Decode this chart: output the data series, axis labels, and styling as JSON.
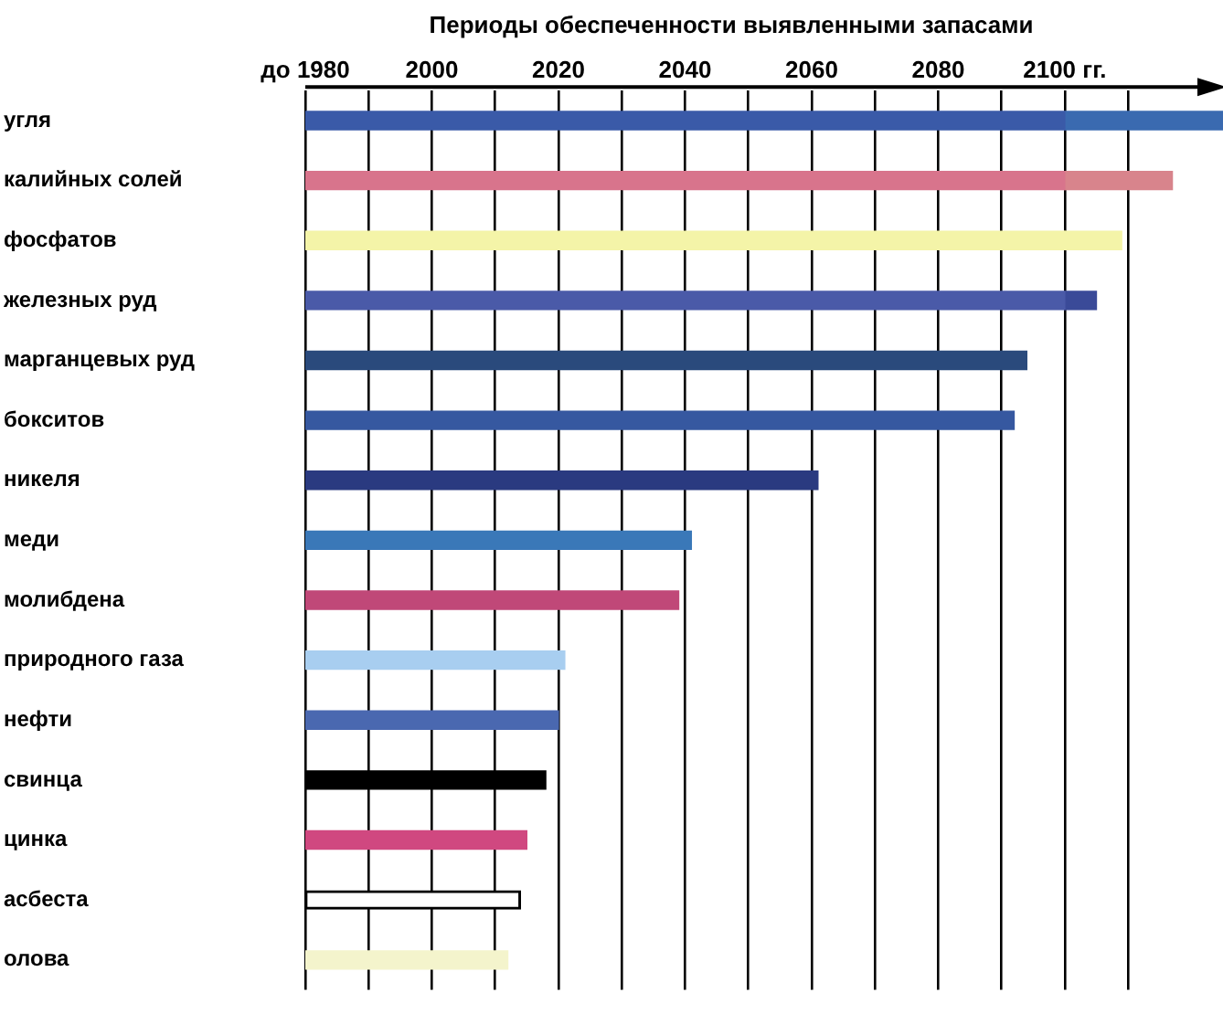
{
  "chart_data": {
    "type": "bar",
    "orientation": "horizontal",
    "title": "Периоды обеспеченности выявленными запасами",
    "categories": [
      "угля",
      "калийных солей",
      "фосфатов",
      "железных руд",
      "марганцевых руд",
      "бокситов",
      "никеля",
      "меди",
      "молибдена",
      "природного газа",
      "нефти",
      "свинца",
      "цинка",
      "асбеста",
      "олова"
    ],
    "series": [
      {
        "colors": [
          "#3a5aa8",
          "#d8748c",
          "#f4f4a8",
          "#4a5aa8",
          "#2a4a7c",
          "#3658a0",
          "#2a3a80",
          "#3a78b8",
          "#c04878",
          "#a8cef0",
          "#4a68b0",
          "#000000",
          "#d04880",
          "#ffffff",
          "#f4f4cc"
        ],
        "base": [
          1980,
          1980,
          1980,
          1980,
          1980,
          1980,
          1980,
          1980,
          1980,
          1980,
          1980,
          1980,
          1980,
          1980,
          1980
        ],
        "values": [
          120,
          120,
          120,
          120,
          114,
          112,
          81,
          61,
          59,
          41,
          40,
          38,
          35,
          34,
          32
        ]
      },
      {
        "colors": [
          "#3a6ab0",
          "#d8848c",
          "#f4f4a8",
          "#3a4a98",
          null,
          null,
          null,
          null,
          null,
          null,
          null,
          null,
          null,
          null,
          null
        ],
        "base": [
          2100,
          2100,
          2100,
          2100,
          null,
          null,
          null,
          null,
          null,
          null,
          null,
          null,
          null,
          null,
          null
        ],
        "values": [
          25,
          17,
          9,
          5,
          null,
          null,
          null,
          null,
          null,
          null,
          null,
          null,
          null,
          null,
          null
        ]
      }
    ],
    "xlim": [
      1980,
      2125
    ],
    "xticks": [
      {
        "value": 1980,
        "label": "до 1980"
      },
      {
        "value": 1990,
        "label": null
      },
      2000,
      {
        "value": 2010,
        "label": null
      },
      2020,
      {
        "value": 2030,
        "label": null
      },
      2040,
      {
        "value": 2050,
        "label": null
      },
      2060,
      {
        "value": 2070,
        "label": null
      },
      2080,
      {
        "value": 2090,
        "label": null
      },
      {
        "value": 2100,
        "label": "2100 гг."
      },
      {
        "value": 2110,
        "label": null
      }
    ],
    "grid": "x",
    "legend": false
  }
}
